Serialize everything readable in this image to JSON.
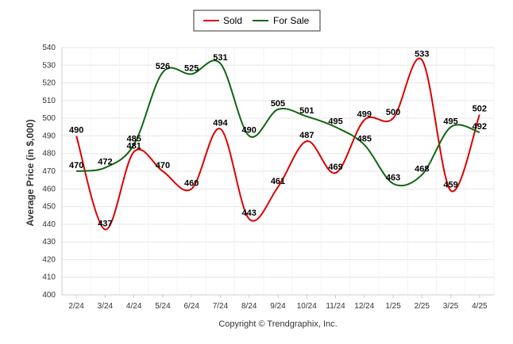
{
  "chart_data": {
    "type": "line",
    "ylabel": "Average Price (in $,000)",
    "credit": "Copyright © Trendgraphix, Inc.",
    "categories": [
      "2/24",
      "3/24",
      "4/24",
      "5/24",
      "6/24",
      "7/24",
      "8/24",
      "9/24",
      "10/24",
      "11/24",
      "12/24",
      "1/25",
      "2/25",
      "3/25",
      "4/25"
    ],
    "ylim": [
      400,
      540
    ],
    "yticks": [
      400,
      410,
      420,
      430,
      440,
      450,
      460,
      470,
      480,
      490,
      500,
      510,
      520,
      530,
      540
    ],
    "grid": true,
    "legend_position": "top-center",
    "series": [
      {
        "name": "Sold",
        "color": "#dd0000",
        "values": [
          490,
          437,
          481,
          470,
          460,
          494,
          443,
          461,
          487,
          469,
          499,
          500,
          533,
          459,
          502
        ]
      },
      {
        "name": "For Sale",
        "color": "#116611",
        "values": [
          470,
          472,
          485,
          526,
          525,
          531,
          490,
          505,
          501,
          495,
          485,
          463,
          468,
          495,
          492
        ]
      }
    ]
  }
}
